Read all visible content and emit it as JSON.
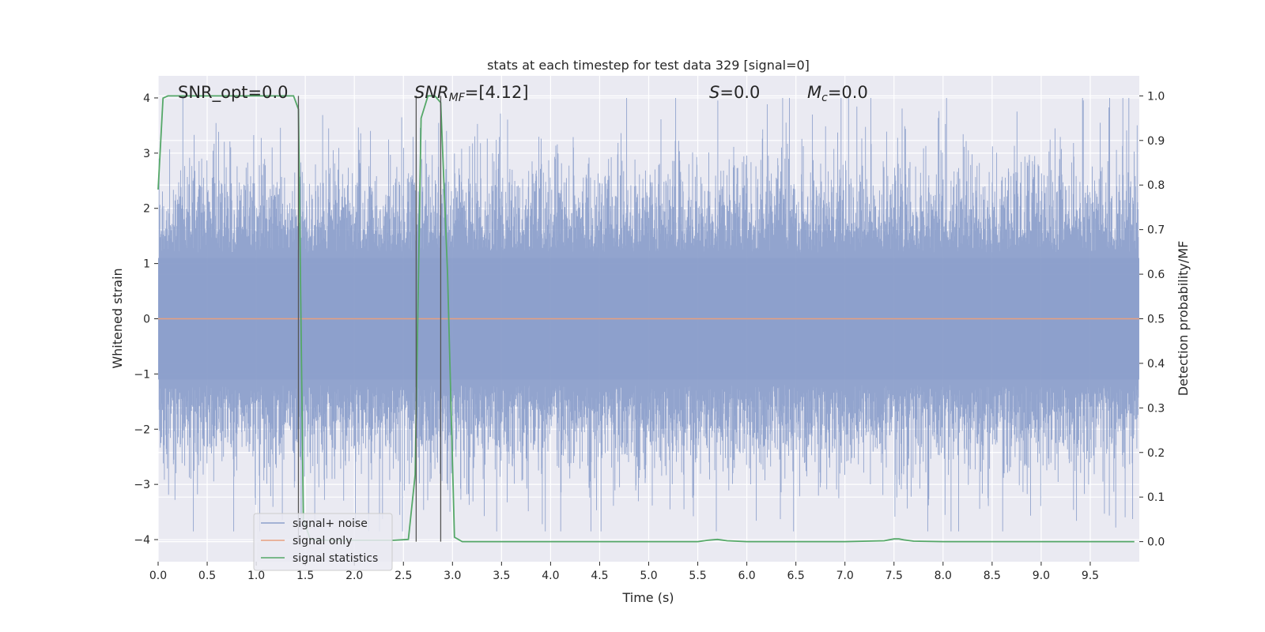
{
  "chart_data": {
    "type": "line",
    "title": "stats at each timestep for test data 329 [signal=0]",
    "xlabel": "Time (s)",
    "ylabel": "Whitened strain",
    "y2label": "Detection probability/MF",
    "xlim": [
      0,
      10
    ],
    "ylim": [
      -4.4,
      4.4
    ],
    "y2lim": [
      -0.045,
      1.045
    ],
    "x_ticks": [
      0.0,
      0.5,
      1.0,
      1.5,
      2.0,
      2.5,
      3.0,
      3.5,
      4.0,
      4.5,
      5.0,
      5.5,
      6.0,
      6.5,
      7.0,
      7.5,
      8.0,
      8.5,
      9.0,
      9.5
    ],
    "x_tick_labels": [
      "0.0",
      "0.5",
      "1.0",
      "1.5",
      "2.0",
      "2.5",
      "3.0",
      "3.5",
      "4.0",
      "4.5",
      "5.0",
      "5.5",
      "6.0",
      "6.5",
      "7.0",
      "7.5",
      "8.0",
      "8.5",
      "9.0",
      "9.5"
    ],
    "y_ticks": [
      4,
      3,
      2,
      1,
      0,
      -1,
      -2,
      -3,
      -4
    ],
    "y_tick_labels": [
      "4",
      "3",
      "2",
      "1",
      "0",
      "−1",
      "−2",
      "−3",
      "−4"
    ],
    "y2_ticks": [
      1.0,
      0.9,
      0.8,
      0.7,
      0.6,
      0.5,
      0.4,
      0.3,
      0.2,
      0.1,
      0.0
    ],
    "y2_tick_labels": [
      "1.0",
      "0.9",
      "0.8",
      "0.7",
      "0.6",
      "0.5",
      "0.4",
      "0.3",
      "0.2",
      "0.1",
      "0.0"
    ],
    "grid": true,
    "legend_position": "lower-left",
    "annotations": {
      "snr_opt": "SNR_opt=0.0",
      "snr_mf": "SNR",
      "snr_mf_sub": "MF",
      "snr_mf_value": "=[4.12]",
      "s_symbol": "S",
      "s_value": "=0.0",
      "mc_symbol": "M",
      "mc_sub": "c",
      "mc_value": "=0.0"
    },
    "vertical_lines": [
      1.43,
      2.63,
      2.88
    ],
    "series": [
      {
        "name": "signal+ noise",
        "color": "#8da0cb",
        "envelope_note": "whitened strain noise spanning roughly -3.8 to 4.0"
      },
      {
        "name": "signal only",
        "color": "#e8a07f",
        "x": [
          0,
          10
        ],
        "y": [
          0,
          0
        ]
      },
      {
        "name": "signal statistics",
        "color": "#55a868",
        "axis": "right",
        "x": [
          0.0,
          0.05,
          0.1,
          0.2,
          0.5,
          1.0,
          1.3,
          1.38,
          1.43,
          1.48,
          1.55,
          1.7,
          2.0,
          2.4,
          2.55,
          2.62,
          2.68,
          2.75,
          2.82,
          2.88,
          2.95,
          3.02,
          3.1,
          3.5,
          4.0,
          4.5,
          5.0,
          5.5,
          5.6,
          5.7,
          5.8,
          6.0,
          6.5,
          7.0,
          7.4,
          7.5,
          7.55,
          7.6,
          7.7,
          8.0,
          8.5,
          9.0,
          9.5,
          9.95
        ],
        "y": [
          0.79,
          0.995,
          1.0,
          1.0,
          1.0,
          1.0,
          1.0,
          1.0,
          0.97,
          0.05,
          0.005,
          0.003,
          0.003,
          0.003,
          0.005,
          0.15,
          0.95,
          1.0,
          1.0,
          0.985,
          0.6,
          0.01,
          0.0,
          0.0,
          0.0,
          0.0,
          0.0,
          0.0,
          0.003,
          0.005,
          0.002,
          0.0,
          0.0,
          0.0,
          0.002,
          0.006,
          0.006,
          0.004,
          0.001,
          0.0,
          0.0,
          0.0,
          0.0,
          0.0
        ]
      }
    ]
  }
}
